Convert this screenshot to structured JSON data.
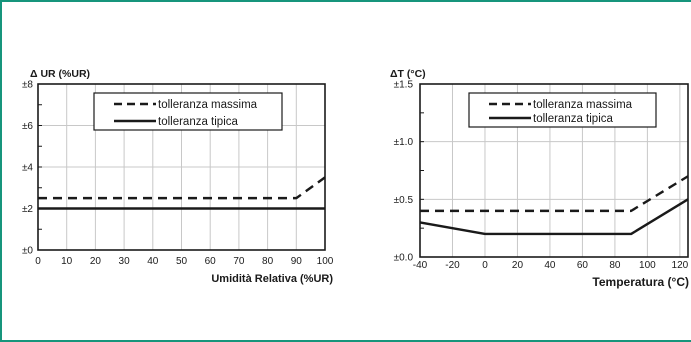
{
  "colors": {
    "frame": "#16957c",
    "ink": "#1a1a1a",
    "grid": "#c8c8c8"
  },
  "chart_data": [
    {
      "type": "line",
      "title": "",
      "ylabel": "Δ UR (%UR)",
      "xlabel": "Umidità Relativa (%UR)",
      "xlim": [
        0,
        100
      ],
      "ylim": [
        0,
        8
      ],
      "xticks": [
        "0",
        "10",
        "20",
        "30",
        "40",
        "50",
        "60",
        "70",
        "80",
        "90",
        "100"
      ],
      "yticks": [
        "±0",
        "±2",
        "±4",
        "±6",
        "±8"
      ],
      "grid": true,
      "legend_position": "top-center",
      "series": [
        {
          "name": "tolleranza massima",
          "style": "dashed",
          "x": [
            0,
            90,
            100
          ],
          "y": [
            2.5,
            2.5,
            3.5
          ]
        },
        {
          "name": "tolleranza tipica",
          "style": "solid",
          "x": [
            0,
            100
          ],
          "y": [
            2,
            2
          ]
        }
      ]
    },
    {
      "type": "line",
      "title": "",
      "ylabel": "ΔT (°C)",
      "xlabel": "Temperatura (°C)",
      "xlim": [
        -40,
        125
      ],
      "ylim": [
        0,
        1.5
      ],
      "xticks": [
        "-40",
        "-20",
        "0",
        "20",
        "40",
        "60",
        "80",
        "100",
        "120"
      ],
      "yticks": [
        "±0.0",
        "±0.5",
        "±1.0",
        "±1.5"
      ],
      "grid": true,
      "legend_position": "top-right",
      "series": [
        {
          "name": "tolleranza massima",
          "style": "dashed",
          "x": [
            -40,
            90,
            125
          ],
          "y": [
            0.4,
            0.4,
            0.7
          ]
        },
        {
          "name": "tolleranza tipica",
          "style": "solid",
          "x": [
            -40,
            0,
            90,
            125
          ],
          "y": [
            0.3,
            0.2,
            0.2,
            0.5
          ]
        }
      ]
    }
  ]
}
